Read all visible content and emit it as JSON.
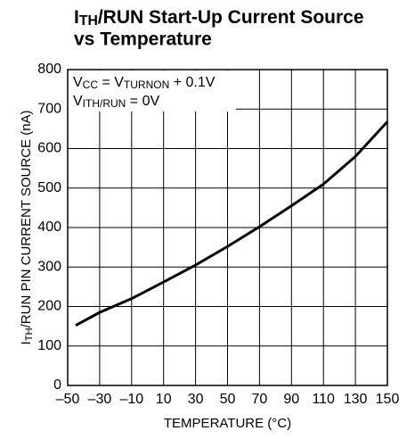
{
  "chart_data": {
    "type": "line",
    "title": [
      "I",
      "TH",
      "/RUN Start-Up Current Source"
    ],
    "subtitle": "vs Temperature",
    "annotation": [
      [
        "V",
        "CC",
        " = V",
        "TURNON",
        " + 0.1V"
      ],
      [
        "V",
        "ITH/RUN",
        " = 0V"
      ]
    ],
    "xlabel": "TEMPERATURE (°C)",
    "ylabel": [
      "I",
      "TH",
      "/RUN PIN CURRENT SOURCE (nA)"
    ],
    "xlim": [
      -50,
      150
    ],
    "xticks": [
      {
        "value": -50,
        "label": "–50"
      },
      {
        "value": -30,
        "label": "–30"
      },
      {
        "value": -10,
        "label": "–10"
      },
      10,
      30,
      50,
      70,
      90,
      110,
      130,
      150
    ],
    "ylim": [
      0,
      800
    ],
    "yticks": [
      0,
      100,
      200,
      300,
      400,
      500,
      600,
      700,
      800
    ],
    "grid": true,
    "series": [
      {
        "name": "",
        "color": "#000000",
        "x": [
          -45,
          -30,
          -10,
          10,
          30,
          50,
          70,
          90,
          110,
          130,
          150
        ],
        "values": [
          152,
          185,
          220,
          262,
          305,
          352,
          402,
          455,
          510,
          580,
          668
        ]
      }
    ]
  }
}
